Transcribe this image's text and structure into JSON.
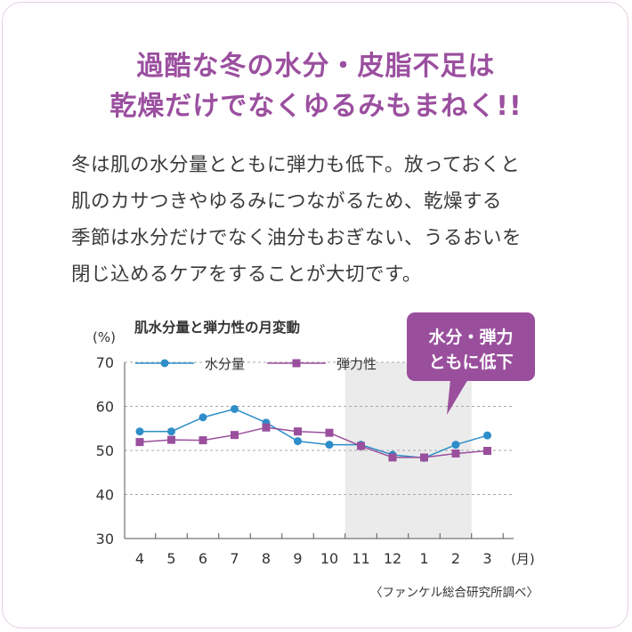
{
  "headline": {
    "line1": "過酷な冬の水分・皮脂不足は",
    "line2": "乾燥だけでなくゆるみもまねく!!"
  },
  "body": {
    "lines": [
      "冬は肌の水分量とともに弾力も低下。放っておくと",
      "肌のカサつきやゆるみにつながるため、乾燥する",
      "季節は水分だけでなく油分もおぎない、うるおいを",
      "閉じ込めるケアをすることが大切です。"
    ]
  },
  "callout": {
    "line1": "水分・弾力",
    "line2": "ともに低下"
  },
  "source": "〈ファンケル総合研究所調べ〉",
  "chart_data": {
    "type": "line",
    "title": "肌水分量と弾力性の月変動",
    "ylabel": "(%)",
    "xlabel": "(月)",
    "ylim": [
      30,
      70
    ],
    "yticks": [
      "30",
      "40",
      "50",
      "60",
      "70"
    ],
    "categories": [
      "4",
      "5",
      "6",
      "7",
      "8",
      "9",
      "10",
      "11",
      "12",
      "1",
      "2",
      "3"
    ],
    "highlight_range": [
      "11",
      "2"
    ],
    "grid": "dashed horizontal",
    "legend": "top-left",
    "series": [
      {
        "name": "水分量",
        "color": "#2d8ec8",
        "marker": "circle",
        "values": [
          54.3,
          54.3,
          57.5,
          59.4,
          56.3,
          52.1,
          51.3,
          51.3,
          49.0,
          48.3,
          51.3,
          53.4
        ]
      },
      {
        "name": "弾力性",
        "color": "#9a4f9d",
        "marker": "square",
        "values": [
          51.9,
          52.4,
          52.3,
          53.5,
          55.2,
          54.3,
          54.0,
          51.0,
          48.4,
          48.4,
          49.3,
          49.9
        ]
      }
    ]
  }
}
